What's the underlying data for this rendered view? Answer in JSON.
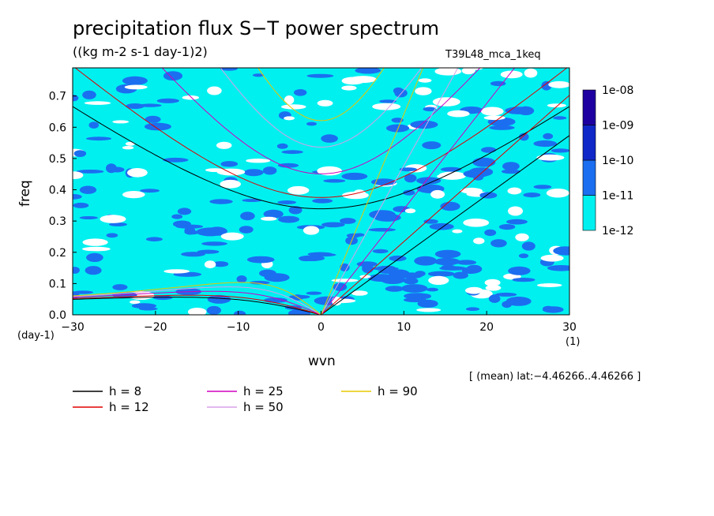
{
  "title": "precipitation flux S−T power spectrum",
  "units": "((kg m-2 s-1 day-1)2)",
  "run_label": "T39L48_mca_1keq",
  "region_note": "[ (mean) lat:−4.46266..4.46266 ]",
  "colors": {
    "h8": "#000000",
    "h12": "#e00000",
    "h25": "#d000c0",
    "h50": "#d8a0e8",
    "h90": "#e8c800",
    "shade": [
      "#00f0f0",
      "#1b6ef0",
      "#1028c8",
      "#1e00a0",
      "#4010b0"
    ]
  },
  "chart_data": {
    "type": "heatmap",
    "xlabel": "wvn",
    "ylabel": "freq",
    "x_unit": "(1)",
    "y_unit": "(day-1)",
    "xlim": [
      -30,
      30
    ],
    "ylim": [
      0,
      0.79
    ],
    "x_ticks": [
      -30,
      -20,
      -10,
      0,
      10,
      20,
      30
    ],
    "x_tick_labels": [
      "−30",
      "−20",
      "−10",
      "0",
      "10",
      "20",
      "30"
    ],
    "y_ticks": [
      0,
      0.1,
      0.2,
      0.3,
      0.4,
      0.5,
      0.6,
      0.7
    ],
    "y_tick_labels": [
      "0.0",
      "0.1",
      "0.2",
      "0.3",
      "0.4",
      "0.5",
      "0.6",
      "0.7"
    ],
    "colorbar": {
      "levels": [
        "1e-12",
        "1e-11",
        "1e-10",
        "1e-09",
        "1e-08"
      ]
    },
    "dispersion_curves": [
      {
        "name": "h =  8",
        "h": 8
      },
      {
        "name": "h = 12",
        "h": 12
      },
      {
        "name": "h = 25",
        "h": 25
      },
      {
        "name": "h = 50",
        "h": 50
      },
      {
        "name": "h = 90",
        "h": 90
      }
    ]
  }
}
